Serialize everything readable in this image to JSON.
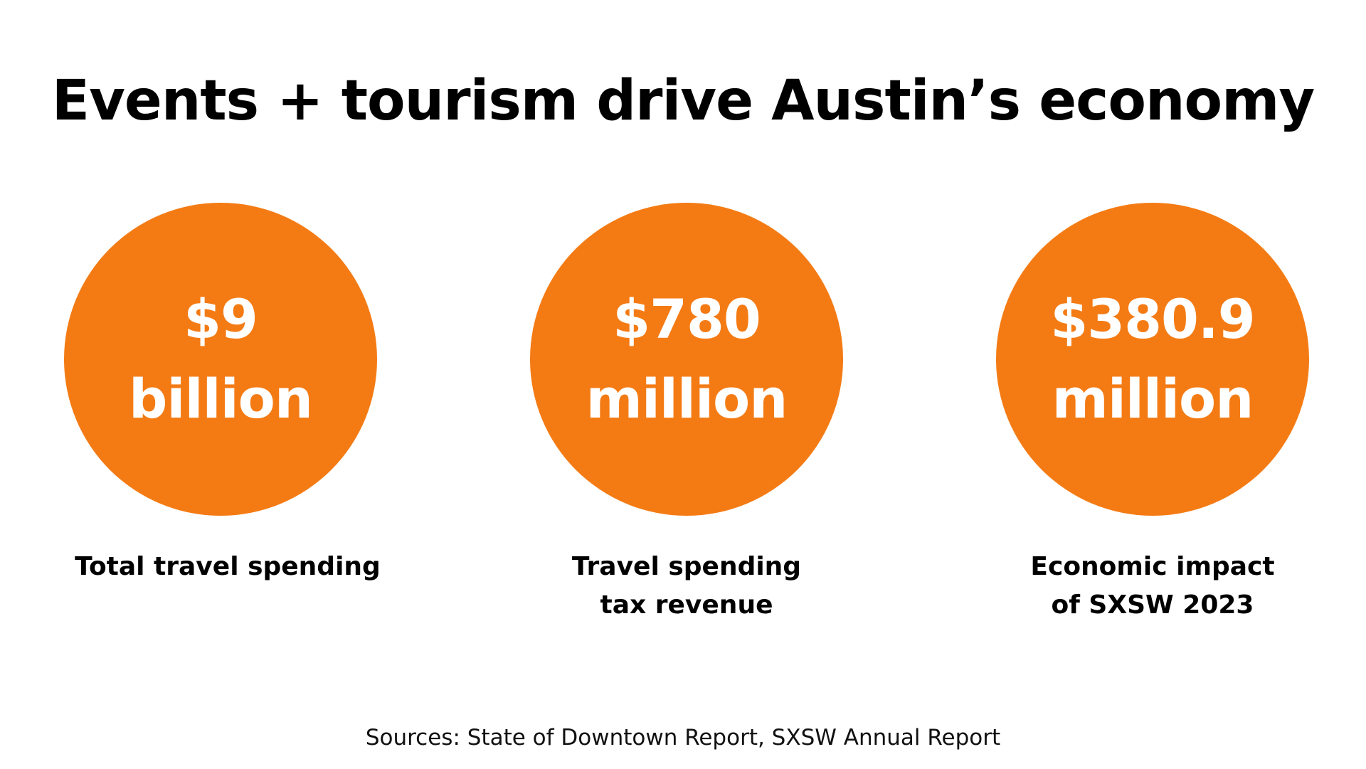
{
  "slide": {
    "title": "Events + tourism drive Austin’s economy",
    "accent_color": "#f47b14",
    "stats": [
      {
        "value_line1": "$9",
        "value_line2": "billion",
        "label_line1": "Total travel spending",
        "label_line2": ""
      },
      {
        "value_line1": "$780",
        "value_line2": "million",
        "label_line1": "Travel spending",
        "label_line2": "tax revenue"
      },
      {
        "value_line1": "$380.9",
        "value_line2": "million",
        "label_line1": "Economic impact",
        "label_line2": "of SXSW 2023"
      }
    ],
    "sources": "Sources: State of Downtown Report, SXSW Annual Report"
  }
}
